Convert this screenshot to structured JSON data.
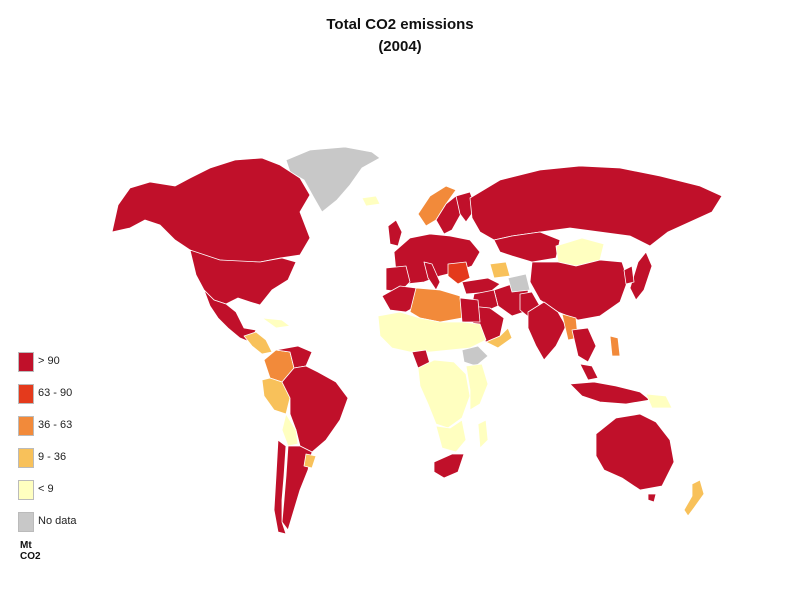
{
  "title": "Total CO2 emissions",
  "subtitle": "(2004)",
  "legend": {
    "items": [
      {
        "label": "> 90",
        "color": "#c0102a"
      },
      {
        "label": "63 - 90",
        "color": "#e43a1c"
      },
      {
        "label": "36 - 63",
        "color": "#f28a3a"
      },
      {
        "label": "9 - 36",
        "color": "#f8c15a"
      },
      {
        "label": "< 9",
        "color": "#ffffc0"
      },
      {
        "label": "No data",
        "color": "#c8c8c8"
      }
    ],
    "unit": "Mt CO2"
  },
  "colors": {
    "high": "#c0102a",
    "mid_high": "#e43a1c",
    "mid": "#f28a3a",
    "low_mid": "#f8c15a",
    "low": "#ffffc0",
    "none": "#c8c8c8",
    "border": "#ffffff"
  }
}
